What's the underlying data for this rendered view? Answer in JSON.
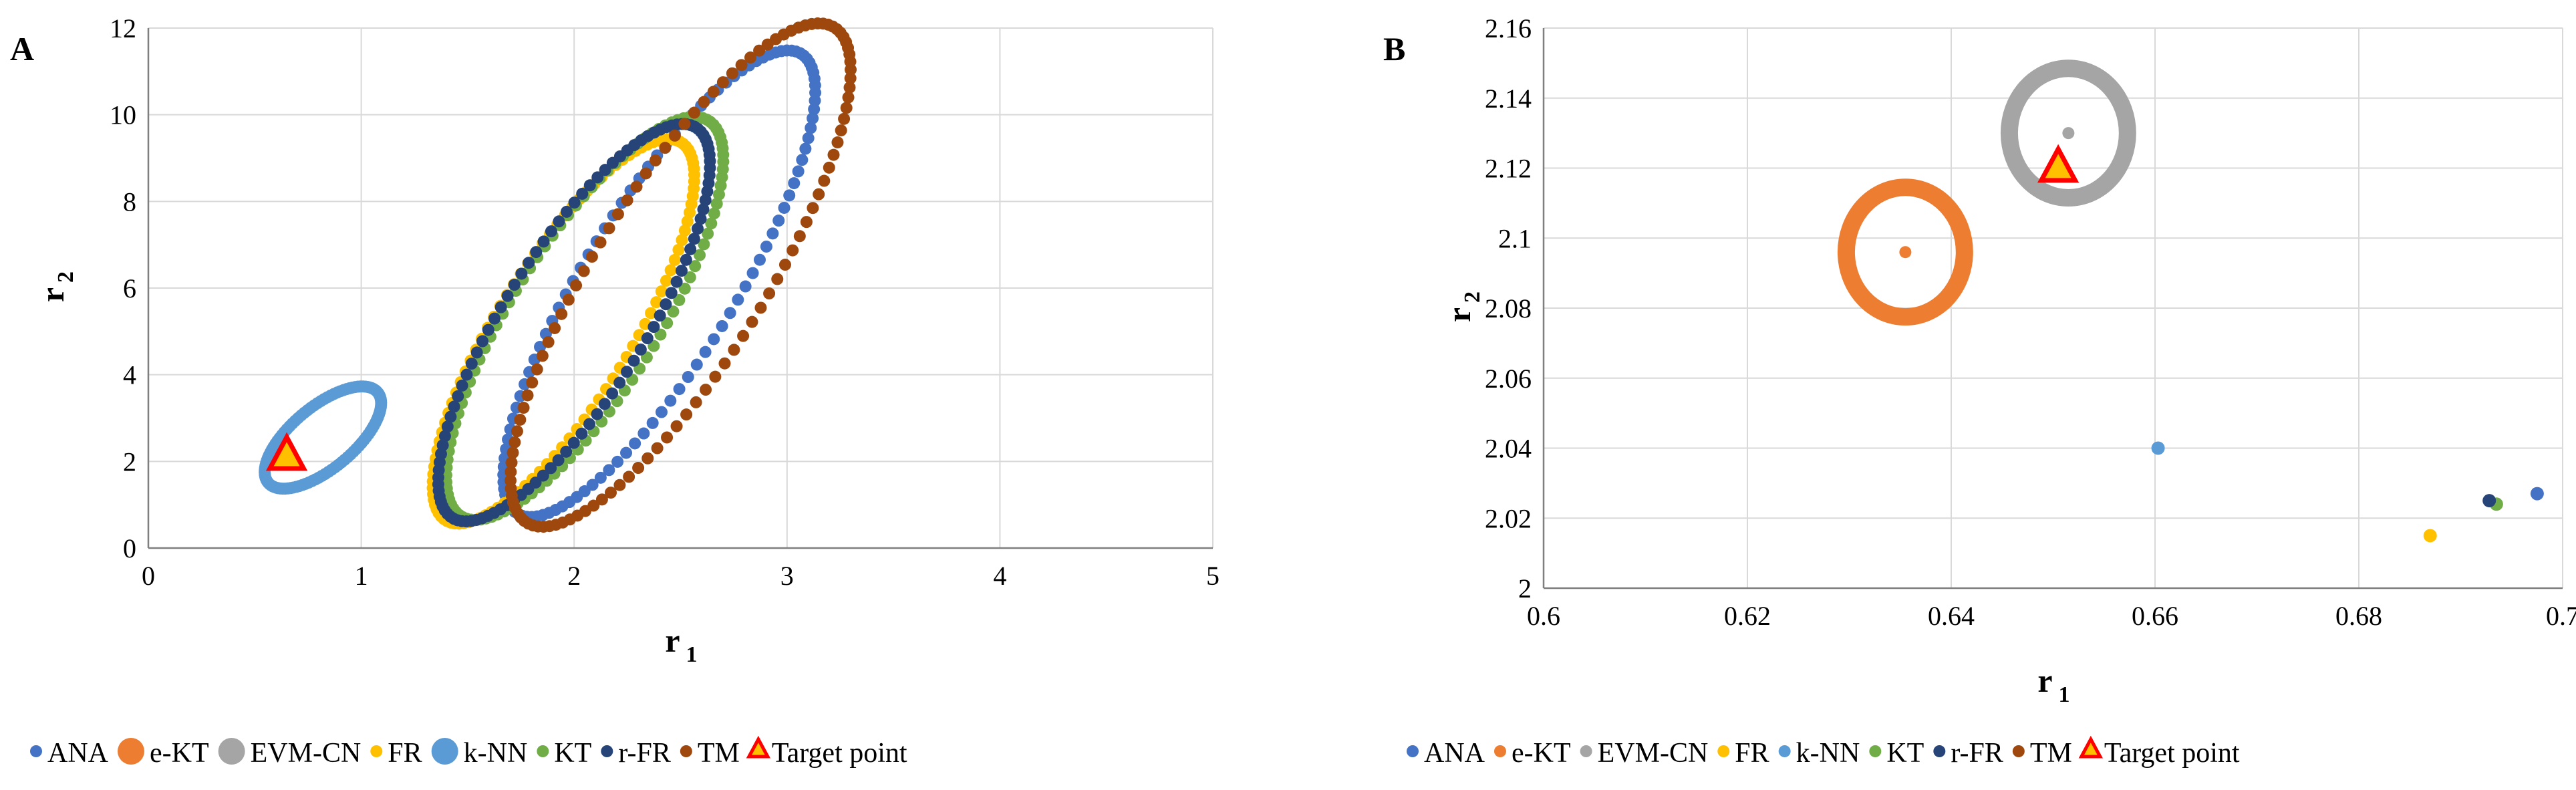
{
  "chart_data": [
    {
      "panel_label": "A",
      "type": "scatter",
      "xlabel": "r",
      "xlabel_sub": "1",
      "ylabel": "r",
      "ylabel_sub": "2",
      "xlim": [
        0,
        5
      ],
      "ylim": [
        0,
        12
      ],
      "xticks": [
        "0",
        "1",
        "2",
        "3",
        "4",
        "5"
      ],
      "yticks": [
        "0",
        "2",
        "4",
        "6",
        "8",
        "10",
        "12"
      ],
      "grid": true,
      "legend_position": "bottom",
      "series": [
        {
          "name": "ANA",
          "color": "#4472C4",
          "shape": "ellipse",
          "center": [
            2.4,
            6.1
          ],
          "major": 2.55,
          "minor": 0.62,
          "angle_deg": 66
        },
        {
          "name": "e-KT",
          "color": "#ED7D31",
          "shape": "point",
          "point": [
            0.63,
            2.1
          ]
        },
        {
          "name": "EVM-CN",
          "color": "#A5A5A5",
          "shape": "point",
          "point": [
            0.65,
            2.13
          ]
        },
        {
          "name": "FR",
          "color": "#FFC000",
          "shape": "ellipse",
          "center": [
            1.95,
            5.0
          ],
          "major": 2.1,
          "minor": 0.55,
          "angle_deg": 66
        },
        {
          "name": "k-NN",
          "color": "#5B9BD5",
          "shape": "ellipse",
          "center": [
            0.82,
            2.55
          ],
          "major": 0.62,
          "minor": 0.28,
          "angle_deg": 52
        },
        {
          "name": "KT",
          "color": "#70AD47",
          "shape": "ellipse",
          "center": [
            2.05,
            5.3
          ],
          "major": 2.2,
          "minor": 0.6,
          "angle_deg": 66
        },
        {
          "name": "r-FR",
          "color": "#264478",
          "shape": "ellipse",
          "center": [
            2.0,
            5.2
          ],
          "major": 2.17,
          "minor": 0.58,
          "angle_deg": 66
        },
        {
          "name": "TM",
          "color": "#9E480E",
          "shape": "ellipse",
          "center": [
            2.5,
            6.3
          ],
          "major": 2.75,
          "minor": 0.7,
          "angle_deg": 66
        },
        {
          "name": "Target point",
          "color": "#FF0000",
          "fill": "#FFC000",
          "shape": "triangle",
          "point": [
            0.65,
            2.12
          ]
        }
      ]
    },
    {
      "panel_label": "B",
      "type": "scatter",
      "xlabel": "r",
      "xlabel_sub": "1",
      "ylabel": "r",
      "ylabel_sub": "2",
      "xlim": [
        0.6,
        0.7
      ],
      "ylim": [
        2.0,
        2.16
      ],
      "xticks": [
        "0.6",
        "0.62",
        "0.64",
        "0.66",
        "0.68",
        "0.7"
      ],
      "yticks": [
        "2",
        "2.02",
        "2.04",
        "2.06",
        "2.08",
        "2.1",
        "2.12",
        "2.14",
        "2.16"
      ],
      "grid": true,
      "legend_position": "bottom",
      "series": [
        {
          "name": "ANA",
          "color": "#4472C4",
          "shape": "point",
          "point": [
            0.6975,
            2.027
          ]
        },
        {
          "name": "e-KT",
          "color": "#ED7D31",
          "shape": "ring",
          "point": [
            0.6355,
            2.096
          ],
          "ring_dx": 0.0058,
          "ring_dy": 0.0185
        },
        {
          "name": "EVM-CN",
          "color": "#A5A5A5",
          "shape": "ring",
          "point": [
            0.6515,
            2.13
          ],
          "ring_dx": 0.0058,
          "ring_dy": 0.0185
        },
        {
          "name": "FR",
          "color": "#FFC000",
          "shape": "point",
          "point": [
            0.687,
            2.015
          ]
        },
        {
          "name": "k-NN",
          "color": "#5B9BD5",
          "shape": "point",
          "point": [
            0.6603,
            2.04
          ]
        },
        {
          "name": "KT",
          "color": "#70AD47",
          "shape": "point",
          "point": [
            0.6935,
            2.024
          ]
        },
        {
          "name": "r-FR",
          "color": "#264478",
          "shape": "point",
          "point": [
            0.6928,
            2.025
          ]
        },
        {
          "name": "TM",
          "color": "#9E480E",
          "shape": "none"
        },
        {
          "name": "Target point",
          "color": "#FF0000",
          "fill": "#FFC000",
          "shape": "triangle",
          "point": [
            0.6505,
            2.12
          ]
        }
      ]
    }
  ]
}
